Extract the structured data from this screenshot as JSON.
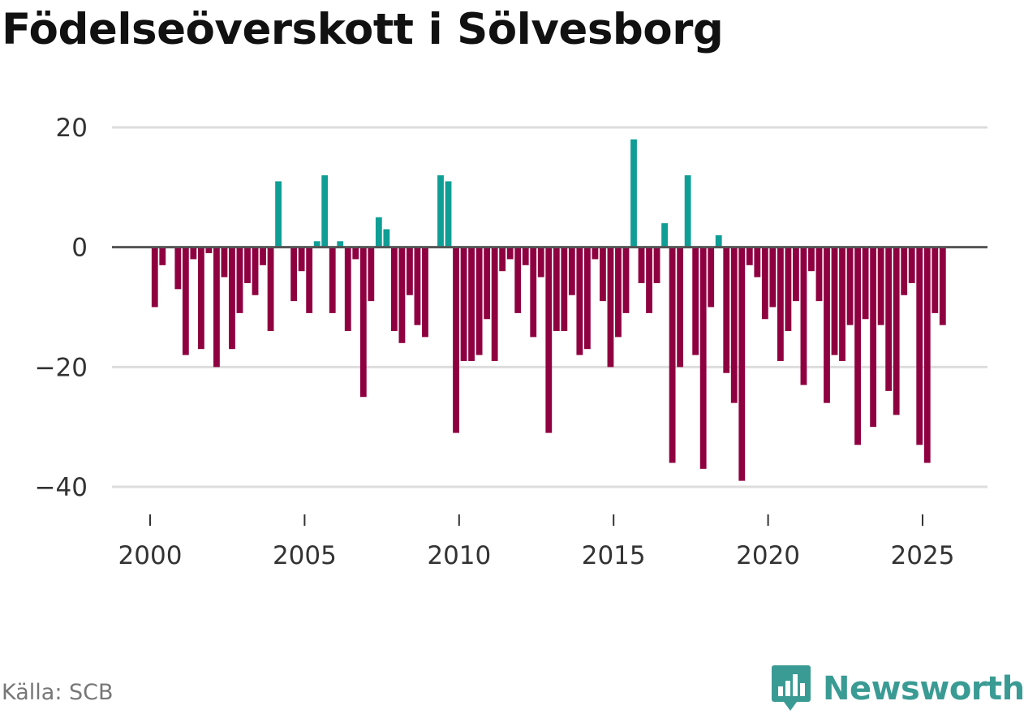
{
  "title": "Födelseöverskott i Sölvesborg",
  "source": "Källa: SCB",
  "brand": "Newsworthy",
  "colors": {
    "positive": "#0f9e96",
    "negative": "#8f0040",
    "brand": "#3a9b94"
  },
  "chart_data": {
    "type": "bar",
    "title": "Födelseöverskott i Sölvesborg",
    "xlabel": "",
    "ylabel": "",
    "frequency": "quarterly",
    "ylim": [
      -43,
      20
    ],
    "yticks": [
      20,
      0,
      -20,
      -40
    ],
    "ytick_labels": [
      "20",
      "0",
      "−20",
      "−40"
    ],
    "xticks": [
      2000,
      2005,
      2010,
      2015,
      2020,
      2025
    ],
    "xlim": [
      1999.6,
      2027.0
    ],
    "start": 2000.0,
    "step": 0.25,
    "values": [
      -10,
      -3,
      0,
      -7,
      -18,
      -2,
      -17,
      -1,
      -20,
      -5,
      -17,
      -11,
      -6,
      -8,
      -3,
      -14,
      11,
      0,
      -9,
      -4,
      -11,
      1,
      12,
      -11,
      1,
      -14,
      -2,
      -25,
      -9,
      5,
      3,
      -14,
      -16,
      -8,
      -13,
      -15,
      0,
      12,
      11,
      -31,
      -19,
      -19,
      -18,
      -12,
      -19,
      -4,
      -2,
      -11,
      -3,
      -15,
      -5,
      -31,
      -14,
      -14,
      -8,
      -18,
      -17,
      -2,
      -9,
      -20,
      -15,
      -11,
      18,
      -6,
      -11,
      -6,
      4,
      -36,
      -20,
      12,
      -18,
      -37,
      -10,
      2,
      -21,
      -26,
      -39,
      -3,
      -5,
      -12,
      -10,
      -19,
      -14,
      -9,
      -23,
      -4,
      -9,
      -26,
      -18,
      -19,
      -13,
      -33,
      -12,
      -30,
      -13,
      -24,
      -28,
      -8,
      -6,
      -33,
      -36,
      -11,
      -13
    ]
  }
}
